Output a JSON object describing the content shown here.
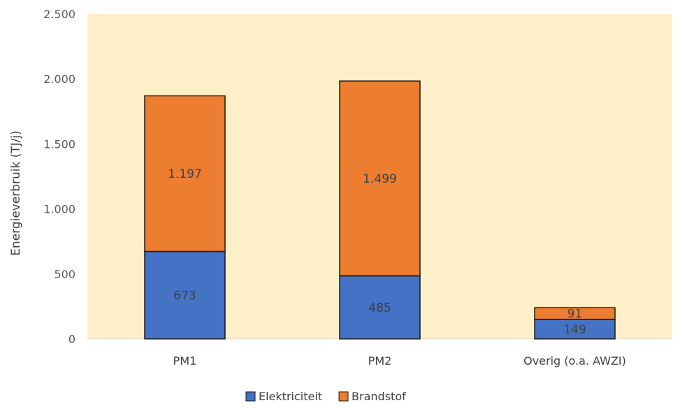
{
  "chart_data": {
    "type": "bar",
    "stacked": true,
    "categories": [
      "PM1",
      "PM2",
      "Overig (o.a. AWZI)"
    ],
    "series": [
      {
        "name": "Elektriciteit",
        "values": [
          673,
          485,
          149
        ],
        "labels": [
          "673",
          "485",
          "149"
        ],
        "color": "#4472C4"
      },
      {
        "name": "Brandstof",
        "values": [
          1197,
          1499,
          91
        ],
        "labels": [
          "1.197",
          "1.499",
          "91"
        ],
        "color": "#ED7D31"
      }
    ],
    "ylabel": "Energieverbruik (TJ/j)",
    "ylim": [
      0,
      2500
    ],
    "yticks": [
      0,
      500,
      1000,
      1500,
      2000,
      2500
    ],
    "ytick_labels": [
      "0",
      "500",
      "1.000",
      "1.500",
      "2.000",
      "2.500"
    ],
    "plot_background": "#FDF0C8",
    "legend_position": "bottom",
    "grid": false
  }
}
